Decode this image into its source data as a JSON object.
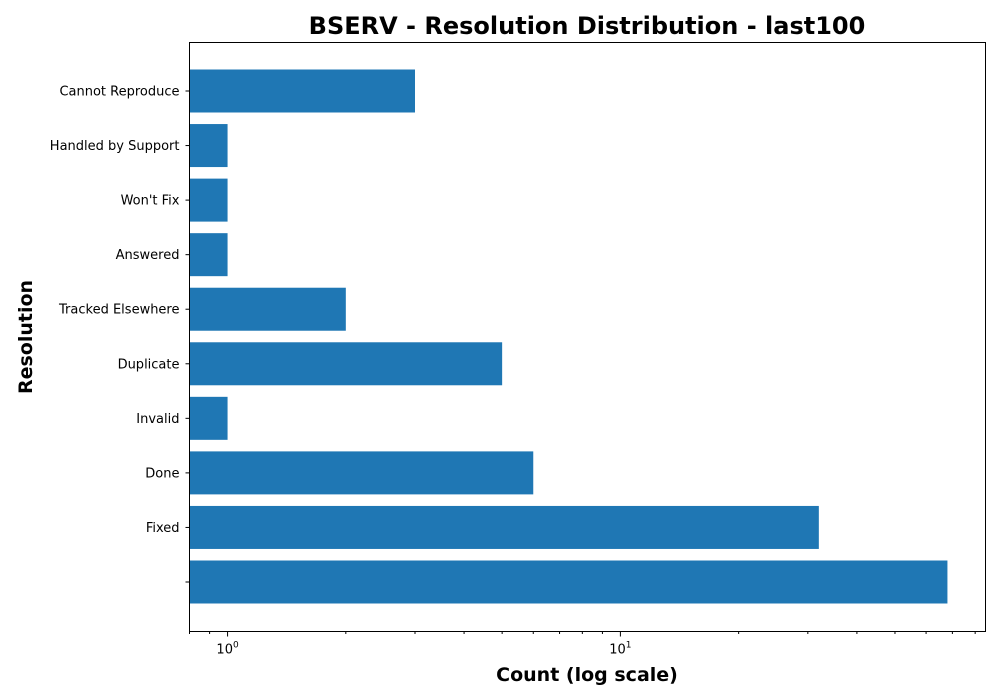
{
  "chart_data": {
    "type": "bar",
    "orientation": "horizontal",
    "title": "BSERV - Resolution Distribution - last100",
    "xlabel": "Count (log scale)",
    "ylabel": "Resolution",
    "x_scale": "log",
    "xlim": [
      0.8,
      85
    ],
    "x_ticks": [
      {
        "value": 1,
        "base": "10",
        "exp": "0"
      },
      {
        "value": 10,
        "base": "10",
        "exp": "1"
      }
    ],
    "categories": [
      "",
      "Fixed",
      "Done",
      "Invalid",
      "Duplicate",
      "Tracked Elsewhere",
      "Answered",
      "Won't Fix",
      "Handled by Support",
      "Cannot Reproduce"
    ],
    "values": [
      68,
      32,
      6,
      1,
      5,
      2,
      1,
      1,
      1,
      3
    ],
    "bar_color": "#1f77b4",
    "grid": false,
    "legend": "none"
  }
}
